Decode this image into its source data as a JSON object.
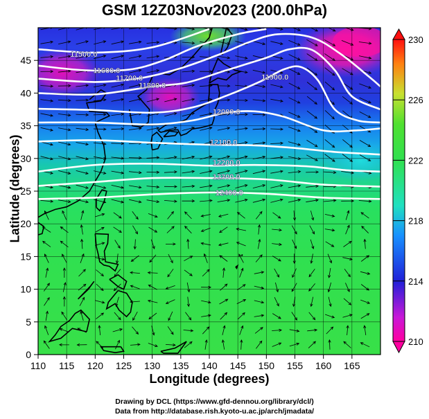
{
  "title": "GSM 12Z03Nov2023 (200.0hPa)",
  "x_axis": {
    "label": "Longitude (degrees)",
    "range": [
      110,
      170
    ],
    "ticks": [
      110,
      115,
      120,
      125,
      130,
      135,
      140,
      145,
      150,
      155,
      160,
      165
    ]
  },
  "y_axis": {
    "label": "Latitude  (degrees)",
    "range": [
      0,
      50
    ],
    "ticks": [
      0,
      5,
      10,
      15,
      20,
      25,
      30,
      35,
      40,
      45
    ]
  },
  "colorbar": {
    "range": [
      210,
      230
    ],
    "tick_labels": [
      230,
      226,
      222,
      218,
      214,
      210
    ],
    "palette": [
      "#ff00a0",
      "#c818d8",
      "#2020d8",
      "#1890ff",
      "#20e0c0",
      "#30e050",
      "#50e030",
      "#c8e030",
      "#ff8010",
      "#ff1010"
    ]
  },
  "contours": [
    {
      "label": "11500.0",
      "label_lon": 118.0,
      "label_lat": 46.0,
      "points": [
        [
          110,
          46.7
        ],
        [
          120,
          46.2
        ],
        [
          130,
          47.0
        ],
        [
          140,
          49.8
        ]
      ]
    },
    {
      "label": "11600.0",
      "label_lon": 122.0,
      "label_lat": 43.5,
      "points": [
        [
          110,
          44.2
        ],
        [
          118,
          43.5
        ],
        [
          126,
          43.6
        ],
        [
          132,
          45.0
        ],
        [
          138,
          47.2
        ],
        [
          145,
          49.0
        ],
        [
          150,
          49.8
        ]
      ]
    },
    {
      "label": "11700.0",
      "label_lon": 126.0,
      "label_lat": 42.3,
      "points": [
        [
          110,
          42.2
        ],
        [
          120,
          41.7
        ],
        [
          128,
          42.3
        ],
        [
          135,
          43.8
        ],
        [
          142,
          46.0
        ],
        [
          147,
          47.8
        ],
        [
          152,
          49.0
        ],
        [
          158,
          48.5
        ],
        [
          163,
          46.0
        ],
        [
          168,
          42.5
        ],
        [
          170,
          41.0
        ]
      ]
    },
    {
      "label": "11800.0",
      "label_lon": 130.0,
      "label_lat": 41.2,
      "points": [
        [
          110,
          40.0
        ],
        [
          120,
          39.8
        ],
        [
          130,
          41.0
        ],
        [
          136,
          41.6
        ],
        [
          143,
          43.5
        ],
        [
          150,
          45.4
        ],
        [
          154,
          46.7
        ],
        [
          158,
          46.6
        ],
        [
          162,
          43.5
        ],
        [
          165,
          39.5
        ],
        [
          170,
          37.5
        ]
      ]
    },
    {
      "label": "11900.0",
      "label_lon": 151.5,
      "label_lat": 42.5,
      "points": [
        [
          110,
          37.6
        ],
        [
          120,
          37.4
        ],
        [
          130,
          37.0
        ],
        [
          137,
          37.8
        ],
        [
          143,
          39.6
        ],
        [
          149,
          41.8
        ],
        [
          153,
          43.6
        ],
        [
          156,
          44.0
        ],
        [
          159,
          42.0
        ],
        [
          162,
          37.5
        ],
        [
          166,
          35.8
        ],
        [
          170,
          35.5
        ]
      ]
    },
    {
      "label": "12000.0",
      "label_lon": 143.0,
      "label_lat": 37.2,
      "points": [
        [
          110,
          35.5
        ],
        [
          120,
          35.5
        ],
        [
          130,
          35.2
        ],
        [
          137,
          35.8
        ],
        [
          143,
          37.0
        ],
        [
          148,
          37.2
        ],
        [
          153,
          36.4
        ],
        [
          160,
          34.3
        ],
        [
          166,
          34.3
        ],
        [
          170,
          34.6
        ]
      ]
    },
    {
      "label": "12100.0",
      "label_lon": 142.5,
      "label_lat": 32.5,
      "points": [
        [
          110,
          32.6
        ],
        [
          120,
          32.8
        ],
        [
          130,
          32.4
        ],
        [
          140,
          32.1
        ],
        [
          148,
          32.0
        ],
        [
          155,
          31.6
        ],
        [
          162,
          31.0
        ],
        [
          170,
          30.6
        ]
      ]
    },
    {
      "label": "12200.0",
      "label_lon": 143.0,
      "label_lat": 29.4,
      "points": [
        [
          110,
          28.0
        ],
        [
          120,
          29.0
        ],
        [
          130,
          29.2
        ],
        [
          140,
          28.9
        ],
        [
          148,
          29.0
        ],
        [
          157,
          28.8
        ],
        [
          164,
          28.2
        ],
        [
          170,
          28.0
        ]
      ]
    },
    {
      "label": "12300.0",
      "label_lon": 143.0,
      "label_lat": 27.2,
      "points": [
        [
          110,
          25.8
        ],
        [
          120,
          26.4
        ],
        [
          130,
          27.0
        ],
        [
          140,
          27.0
        ],
        [
          150,
          26.8
        ],
        [
          160,
          26.0
        ],
        [
          170,
          25.7
        ]
      ]
    },
    {
      "label": "12400.0",
      "label_lon": 143.5,
      "label_lat": 24.8,
      "points": [
        [
          110,
          23.8
        ],
        [
          120,
          24.0
        ],
        [
          130,
          24.5
        ],
        [
          140,
          24.8
        ],
        [
          150,
          24.6
        ],
        [
          160,
          24.0
        ],
        [
          170,
          23.8
        ]
      ]
    }
  ],
  "credit_line1": "Drawing by DCL (https://www.gfd-dennou.org/library/dcl/)",
  "credit_line2": "Data from http://database.rish.kyoto-u.ac.jp/arch/jmadata/"
}
